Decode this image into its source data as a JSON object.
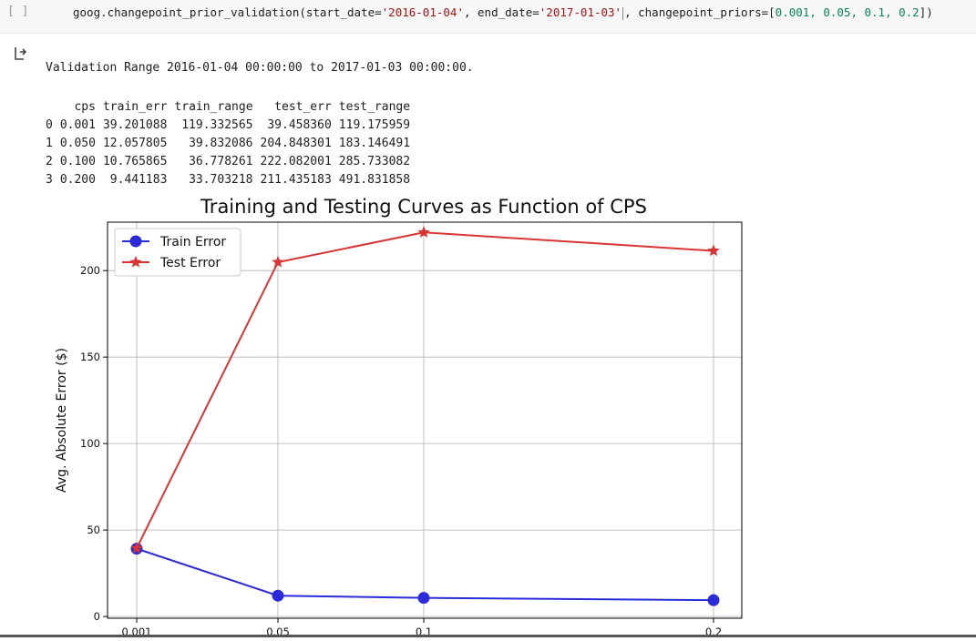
{
  "cell": {
    "run_label": "[ ]",
    "code_prefix": "goog.changepoint_prior_validation(start_date=",
    "start_date": "'2016-01-04'",
    "code_mid": ", end_date=",
    "end_date": "'2017-01-03'",
    "code_mid2": ", changepoint_priors=[",
    "priors": "0.001, 0.05, 0.1, 0.2",
    "code_suffix": "])"
  },
  "output": {
    "validation_text": "Validation Range 2016-01-04 00:00:00 to 2017-01-03 00:00:00.",
    "table": {
      "columns": [
        "",
        "cps",
        "train_err",
        "train_range",
        "test_err",
        "test_range"
      ],
      "rows": [
        [
          "0",
          "0.001",
          "39.201088",
          "119.332565",
          "39.458360",
          "119.175959"
        ],
        [
          "1",
          "0.050",
          "12.057805",
          "39.832086",
          "204.848301",
          "183.146491"
        ],
        [
          "2",
          "0.100",
          "10.765865",
          "36.778261",
          "222.082001",
          "285.733082"
        ],
        [
          "3",
          "0.200",
          "9.441183",
          "33.703218",
          "211.435183",
          "491.831858"
        ]
      ]
    }
  },
  "chart_data": {
    "type": "line",
    "title": "Training and Testing Curves as Function of CPS",
    "xlabel": "",
    "ylabel": "Avg. Absolute Error ($)",
    "categories": [
      "0.001",
      "0.05",
      "0.1",
      "0.2"
    ],
    "x": [
      0.001,
      0.05,
      0.1,
      0.2
    ],
    "ylim": [
      -1,
      228
    ],
    "yticks": [
      0,
      50,
      100,
      150,
      200
    ],
    "grid": true,
    "legend_position": "top-left",
    "series": [
      {
        "name": "Train Error",
        "values": [
          39.201088,
          12.057805,
          10.765865,
          9.441183
        ],
        "color": "#2b2bd9",
        "marker": "circle"
      },
      {
        "name": "Test Error",
        "values": [
          39.45836,
          204.848301,
          222.082001,
          211.435183
        ],
        "color": "#d93434",
        "marker": "star"
      }
    ]
  }
}
